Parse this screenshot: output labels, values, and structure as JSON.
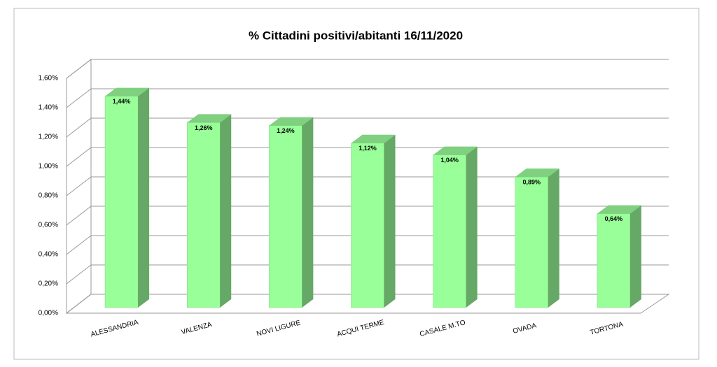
{
  "chart_data": {
    "type": "bar3d",
    "title": "% Cittadini positivi/abitanti 16/11/2020",
    "categories": [
      "ALESSANDRIA",
      "VALENZA",
      "NOVI LIGURE",
      "ACQUI TERME",
      "CASALE M.TO",
      "OVADA",
      "TORTONA"
    ],
    "values": [
      1.44,
      1.26,
      1.24,
      1.12,
      1.04,
      0.89,
      0.64
    ],
    "value_labels": [
      "1,44%",
      "1,26%",
      "1,24%",
      "1,12%",
      "1,04%",
      "0,89%",
      "0,64%"
    ],
    "color": "#99ff99",
    "ylim": [
      0,
      1.6
    ],
    "yticks": [
      {
        "value": 0,
        "label": "0,00%"
      },
      {
        "value": 0.2,
        "label": "0,20%"
      },
      {
        "value": 0.4,
        "label": "0,40%"
      },
      {
        "value": 0.6,
        "label": "0,60%"
      },
      {
        "value": 0.8,
        "label": "0,80%"
      },
      {
        "value": 1.0,
        "label": "1,00%"
      },
      {
        "value": 1.2,
        "label": "1,20%"
      },
      {
        "value": 1.4,
        "label": "1,40%"
      },
      {
        "value": 1.6,
        "label": "1,60%"
      }
    ],
    "grid": true
  }
}
